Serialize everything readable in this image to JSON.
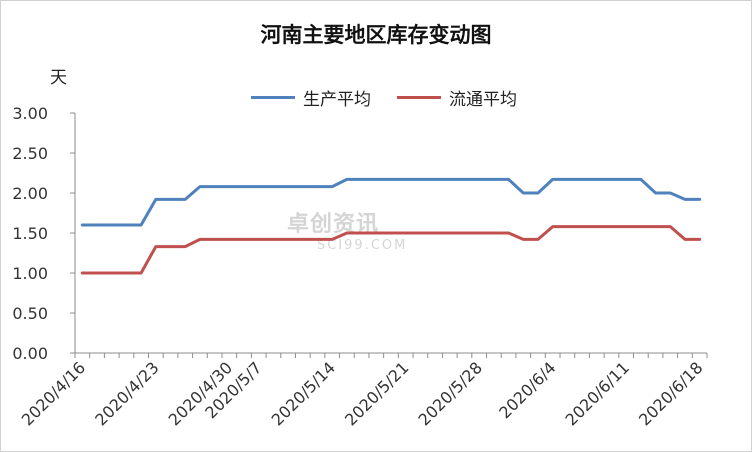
{
  "chart_data": {
    "type": "line",
    "title": "河南主要地区库存变动图",
    "ylabel": "天",
    "xlabel": "",
    "ylim": [
      0,
      3
    ],
    "ytick_labels": [
      "0.00",
      "0.50",
      "1.00",
      "1.50",
      "2.00",
      "2.50",
      "3.00"
    ],
    "yticks": [
      0,
      0.5,
      1,
      1.5,
      2,
      2.5,
      3
    ],
    "xtick_labels": [
      "2020/4/16",
      "2020/4/23",
      "2020/4/30",
      "2020/5/7",
      "2020/5/14",
      "2020/5/21",
      "2020/5/28",
      "2020/6/4",
      "2020/6/11",
      "2020/6/18"
    ],
    "x": [
      "2020/4/16",
      "2020/4/17",
      "2020/4/20",
      "2020/4/21",
      "2020/4/22",
      "2020/4/23",
      "2020/4/24",
      "2020/4/27",
      "2020/4/28",
      "2020/4/29",
      "2020/4/30",
      "2020/5/6",
      "2020/5/7",
      "2020/5/8",
      "2020/5/11",
      "2020/5/12",
      "2020/5/13",
      "2020/5/14",
      "2020/5/15",
      "2020/5/18",
      "2020/5/19",
      "2020/5/20",
      "2020/5/21",
      "2020/5/22",
      "2020/5/25",
      "2020/5/26",
      "2020/5/27",
      "2020/5/28",
      "2020/5/29",
      "2020/6/1",
      "2020/6/2",
      "2020/6/3",
      "2020/6/4",
      "2020/6/5",
      "2020/6/8",
      "2020/6/9",
      "2020/6/10",
      "2020/6/11",
      "2020/6/12",
      "2020/6/15",
      "2020/6/16",
      "2020/6/17",
      "2020/6/18"
    ],
    "series": [
      {
        "name": "生产平均",
        "color": "#4f81bd",
        "values": [
          1.6,
          1.6,
          1.6,
          1.6,
          1.6,
          1.92,
          1.92,
          1.92,
          2.08,
          2.08,
          2.08,
          2.08,
          2.08,
          2.08,
          2.08,
          2.08,
          2.08,
          2.08,
          2.17,
          2.17,
          2.17,
          2.17,
          2.17,
          2.17,
          2.17,
          2.17,
          2.17,
          2.17,
          2.17,
          2.17,
          2.0,
          2.0,
          2.17,
          2.17,
          2.17,
          2.17,
          2.17,
          2.17,
          2.17,
          2.0,
          2.0,
          1.92,
          1.92
        ]
      },
      {
        "name": "流通平均",
        "color": "#c0504d",
        "values": [
          1.0,
          1.0,
          1.0,
          1.0,
          1.0,
          1.33,
          1.33,
          1.33,
          1.42,
          1.42,
          1.42,
          1.42,
          1.42,
          1.42,
          1.42,
          1.42,
          1.42,
          1.42,
          1.5,
          1.5,
          1.5,
          1.5,
          1.5,
          1.5,
          1.5,
          1.5,
          1.5,
          1.5,
          1.5,
          1.5,
          1.42,
          1.42,
          1.58,
          1.58,
          1.58,
          1.58,
          1.58,
          1.58,
          1.58,
          1.58,
          1.58,
          1.42,
          1.42
        ]
      }
    ],
    "grid": false,
    "legend_position": "top"
  },
  "watermark": {
    "text": "卓创资讯",
    "sub": "SCI99.COM"
  }
}
